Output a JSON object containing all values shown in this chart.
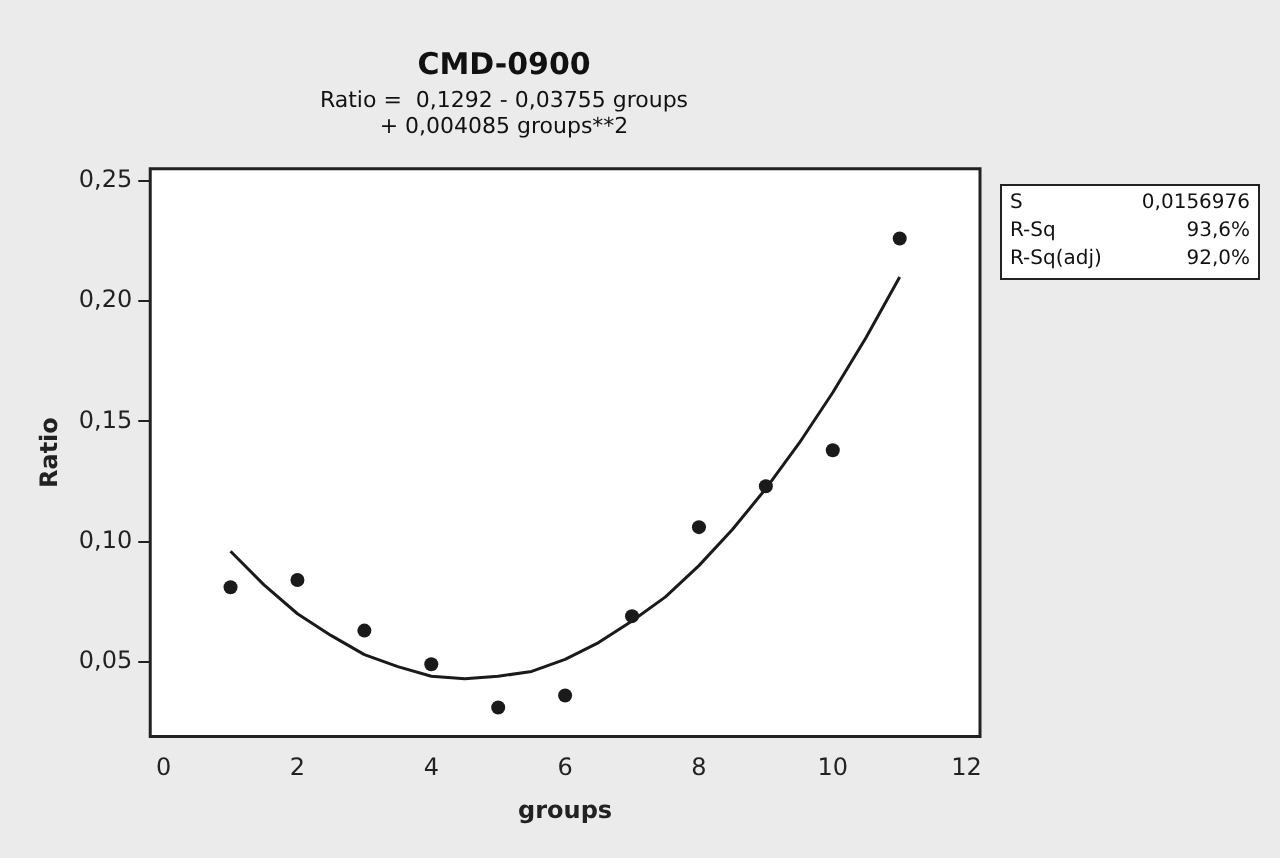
{
  "chart_data": {
    "type": "scatter",
    "title": "CMD-0900",
    "subtitle": "Ratio =  0,1292 - 0,03755 groups\n+ 0,004085 groups**2",
    "xlabel": "groups",
    "ylabel": "Ratio",
    "series": [
      {
        "color": "#1a1a1a",
        "marker": "circle",
        "x": [
          1,
          2,
          3,
          4,
          5,
          6,
          7,
          8,
          9,
          10,
          11
        ],
        "values": [
          0.081,
          0.084,
          0.063,
          0.049,
          0.031,
          0.036,
          0.069,
          0.106,
          0.123,
          0.138,
          0.226
        ]
      },
      {
        "type": "line",
        "color": "#1a1a1a",
        "marker": "none",
        "line_style": "solid",
        "x": [
          1,
          1.5,
          2,
          2.5,
          3,
          3.5,
          4,
          4.5,
          5,
          5.5,
          6,
          6.5,
          7,
          7.5,
          8,
          8.5,
          9,
          9.5,
          10,
          10.5,
          11
        ],
        "values": [
          0.096,
          0.082,
          0.07,
          0.061,
          0.053,
          0.048,
          0.044,
          0.043,
          0.044,
          0.046,
          0.051,
          0.058,
          0.067,
          0.077,
          0.09,
          0.105,
          0.122,
          0.141,
          0.162,
          0.185,
          0.21
        ]
      }
    ],
    "xlim": [
      -0.2,
      12.2
    ],
    "xticks": [
      0,
      2,
      4,
      6,
      8,
      10,
      12
    ],
    "ylim": [
      0.019,
      0.255
    ],
    "yticks": [
      {
        "value": 0.05,
        "label": "0,05"
      },
      {
        "value": 0.1,
        "label": "0,10"
      },
      {
        "value": 0.15,
        "label": "0,15"
      },
      {
        "value": 0.2,
        "label": "0,20"
      },
      {
        "value": 0.25,
        "label": "0,25"
      }
    ],
    "grid": false,
    "legend": false,
    "annotations": [
      "S",
      "0,0156976",
      "R-Sq",
      "93,6%",
      "R-Sq(adj)",
      "92,0%"
    ]
  }
}
